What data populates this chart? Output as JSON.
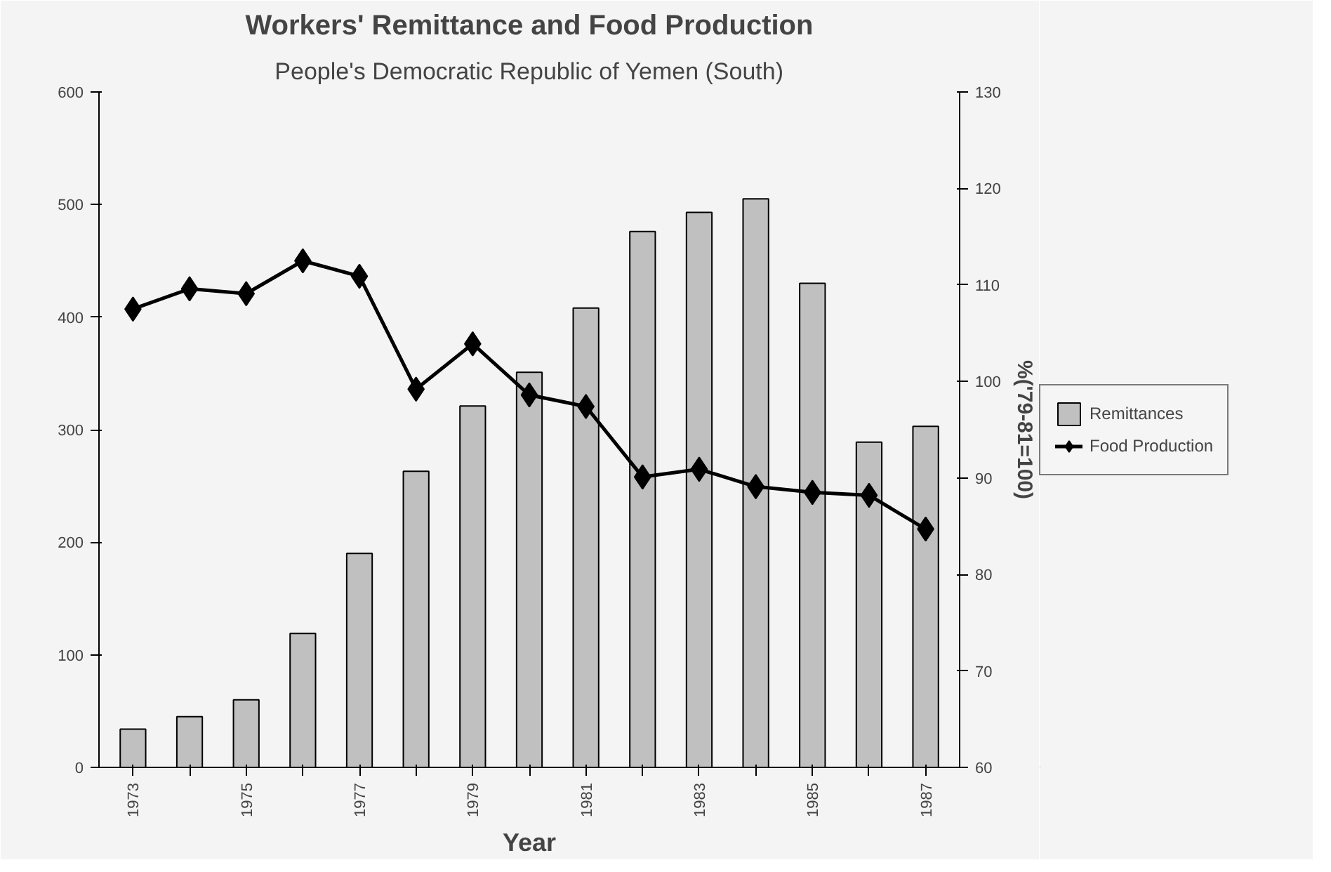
{
  "chart_data": {
    "type": "bar",
    "title": "Workers' Remittance and Food Production",
    "subtitle": "People's Democratic Republic of Yemen (South)",
    "xlabel": "Year",
    "y2label": "%('79-81=100)",
    "categories": [
      "1973",
      null,
      "1975",
      null,
      "1977",
      null,
      "1979",
      null,
      "1981",
      null,
      "1983",
      null,
      "1985",
      null,
      "1987"
    ],
    "series": [
      {
        "name": "Remittances",
        "color": "#c0c0c0",
        "values": [
          34,
          45,
          60,
          119,
          190,
          263,
          321,
          351,
          408,
          476,
          493,
          505,
          430,
          289,
          303
        ]
      },
      {
        "name": "Food Production",
        "type": "line",
        "axis": "y2",
        "color": "#000000",
        "marker": "diamond",
        "values": [
          107.5,
          109.6,
          109.1,
          112.5,
          110.9,
          99.2,
          103.9,
          98.6,
          97.4,
          90.1,
          90.9,
          89.1,
          88.5,
          88.2,
          84.7
        ]
      }
    ],
    "ylim": [
      0,
      600
    ],
    "yticks": [
      0,
      100,
      200,
      300,
      400,
      500,
      600
    ],
    "y2lim": [
      60,
      130
    ],
    "y2ticks": [
      60,
      70,
      80,
      90,
      100,
      110,
      120,
      130
    ],
    "grid": false,
    "legend": "right"
  }
}
